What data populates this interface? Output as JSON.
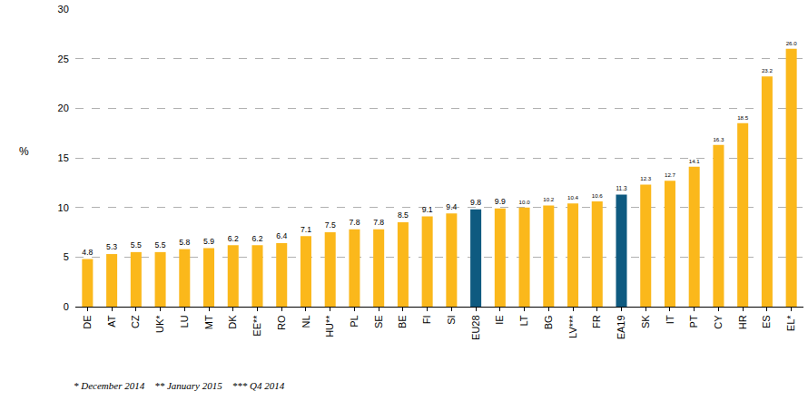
{
  "chart_data": {
    "type": "bar",
    "ylabel": "%",
    "categories": [
      "DE",
      "AT",
      "CZ",
      "UK*",
      "LU",
      "MT",
      "DK",
      "EE**",
      "RO",
      "NL",
      "HU**",
      "PL",
      "SE",
      "BE",
      "FI",
      "SI",
      "EU28",
      "IE",
      "LT",
      "BG",
      "LV***",
      "FR",
      "EA19",
      "SK",
      "IT",
      "PT",
      "CY",
      "HR",
      "ES",
      "EL*"
    ],
    "values": [
      4.8,
      5.3,
      5.5,
      5.5,
      5.8,
      5.9,
      6.2,
      6.2,
      6.4,
      7.1,
      7.5,
      7.8,
      7.8,
      8.5,
      9.1,
      9.4,
      9.8,
      9.9,
      10.0,
      10.2,
      10.4,
      10.6,
      11.3,
      12.3,
      12.7,
      14.1,
      16.3,
      18.5,
      23.2,
      26.0
    ],
    "value_labels": [
      "4.8",
      "5.3",
      "5.5",
      "5.5",
      "5.8",
      "5.9",
      "6.2",
      "6.2",
      "6.4",
      "7.1",
      "7.5",
      "7.8",
      "7.8",
      "8.5",
      "9.1",
      "9.4",
      "9.8",
      "9.9",
      "10.0",
      "10.2",
      "10.4",
      "10.6",
      "11.3",
      "12.3",
      "12.7",
      "14.1",
      "16.3",
      "18.5",
      "23.2",
      "26.0"
    ],
    "colors": [
      "#fbb81b",
      "#fbb81b",
      "#fbb81b",
      "#fbb81b",
      "#fbb81b",
      "#fbb81b",
      "#fbb81b",
      "#fbb81b",
      "#fbb81b",
      "#fbb81b",
      "#fbb81b",
      "#fbb81b",
      "#fbb81b",
      "#fbb81b",
      "#fbb81b",
      "#fbb81b",
      "#0e5a80",
      "#fbb81b",
      "#fbb81b",
      "#fbb81b",
      "#fbb81b",
      "#fbb81b",
      "#0e5a80",
      "#fbb81b",
      "#fbb81b",
      "#fbb81b",
      "#fbb81b",
      "#fbb81b",
      "#fbb81b",
      "#fbb81b"
    ],
    "ylim": [
      0,
      30
    ],
    "yticks": [
      0,
      5,
      10,
      15,
      20,
      25,
      30
    ],
    "grid": true,
    "data_labels": true,
    "annotations": [
      "* December 2014",
      "** January 2015",
      "*** Q4 2014"
    ]
  }
}
